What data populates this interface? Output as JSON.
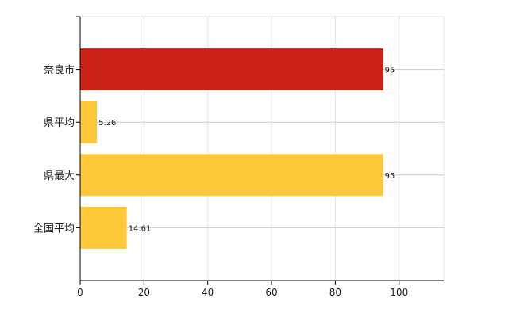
{
  "chart_data": {
    "type": "bar",
    "orientation": "horizontal",
    "categories": [
      "奈良市",
      "県平均",
      "県最大",
      "全国平均"
    ],
    "values": [
      95,
      5.26,
      95,
      14.61
    ],
    "value_labels": [
      "95",
      "5.26",
      "95",
      "14.61"
    ],
    "bar_colors": [
      "#cc2216",
      "#fcc83a",
      "#fcc83a",
      "#fcc83a"
    ],
    "xlim": [
      0,
      114
    ],
    "xticks": [
      0,
      20,
      40,
      60,
      80,
      100
    ],
    "xtick_labels": [
      "0",
      "20",
      "40",
      "60",
      "80",
      "100"
    ],
    "grid": true,
    "title": "",
    "xlabel": "",
    "ylabel": ""
  },
  "colors": {
    "grid": "#cccccc",
    "axis": "#000000",
    "highlight_bar": "#cc2216",
    "default_bar": "#fcc83a"
  }
}
